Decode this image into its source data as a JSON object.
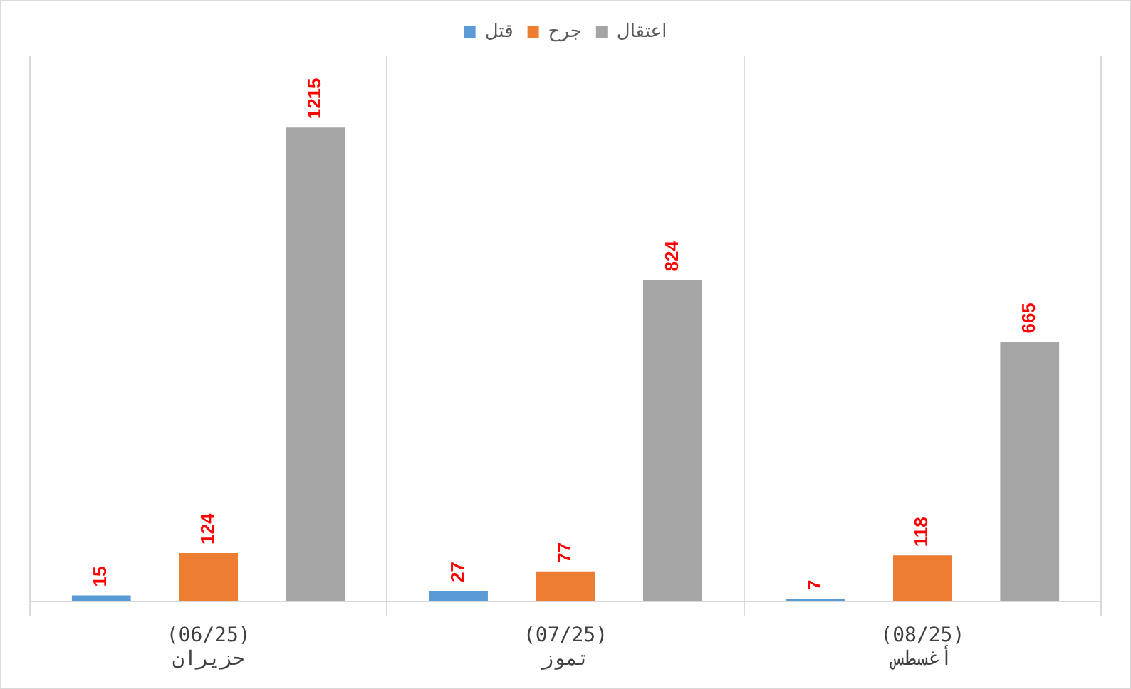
{
  "chart_data": {
    "type": "bar",
    "categories": [
      "(06/25)\nحزيران",
      "(07/25)\nتموز",
      "(08/25)\nأغسطس"
    ],
    "series": [
      {
        "name": "قتل",
        "color": "#5b9bd5",
        "values": [
          15,
          27,
          7
        ]
      },
      {
        "name": "جرح",
        "color": "#ed7d31",
        "values": [
          124,
          77,
          118
        ]
      },
      {
        "name": "اعتقال",
        "color": "#a5a5a5",
        "values": [
          1215,
          824,
          665
        ]
      }
    ],
    "data_labels": true,
    "legend": "top",
    "grid": "x"
  }
}
